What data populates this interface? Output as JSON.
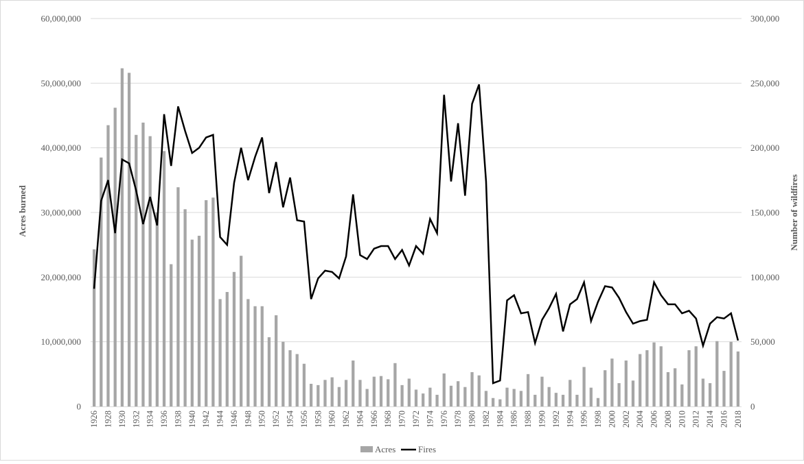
{
  "chart_data": {
    "type": "bar+line",
    "title": "",
    "xlabel": "",
    "ylabel_left": "Acres burned",
    "ylabel_right": "Number of wildfires",
    "ylim_left": [
      0,
      60000000
    ],
    "ylim_right": [
      0,
      300000
    ],
    "yticks_left": [
      "0",
      "10,000,000",
      "20,000,000",
      "30,000,000",
      "40,000,000",
      "50,000,000",
      "60,000,000"
    ],
    "yticks_right": [
      "0",
      "50,000",
      "100,000",
      "150,000",
      "200,000",
      "250,000",
      "300,000"
    ],
    "legend": {
      "position": "bottom",
      "items": [
        "Acres",
        "Fires"
      ]
    },
    "colors": {
      "acres": "#a6a6a6",
      "fires": "#000000",
      "grid": "#d9d9d9"
    },
    "grid": true,
    "years": [
      1926,
      1927,
      1928,
      1929,
      1930,
      1931,
      1932,
      1933,
      1934,
      1935,
      1936,
      1937,
      1938,
      1939,
      1940,
      1941,
      1942,
      1943,
      1944,
      1945,
      1946,
      1947,
      1948,
      1949,
      1950,
      1951,
      1952,
      1953,
      1954,
      1955,
      1956,
      1957,
      1958,
      1959,
      1960,
      1961,
      1962,
      1963,
      1964,
      1965,
      1966,
      1967,
      1968,
      1969,
      1970,
      1971,
      1972,
      1973,
      1974,
      1975,
      1976,
      1977,
      1978,
      1979,
      1980,
      1981,
      1982,
      1983,
      1984,
      1985,
      1986,
      1987,
      1988,
      1989,
      1990,
      1991,
      1992,
      1993,
      1994,
      1995,
      1996,
      1997,
      1998,
      1999,
      2000,
      2001,
      2002,
      2003,
      2004,
      2005,
      2006,
      2007,
      2008,
      2009,
      2010,
      2011,
      2012,
      2013,
      2014,
      2015,
      2016,
      2017,
      2018
    ],
    "series": [
      {
        "name": "Acres",
        "type": "bar",
        "axis": "left",
        "values": [
          24300000,
          38500000,
          43500000,
          46200000,
          52300000,
          51600000,
          42000000,
          43900000,
          41800000,
          30000000,
          39500000,
          22000000,
          33900000,
          30500000,
          25800000,
          26400000,
          31900000,
          32300000,
          16600000,
          17700000,
          20800000,
          23300000,
          16600000,
          15500000,
          15500000,
          10700000,
          14100000,
          10000000,
          8700000,
          8100000,
          6600000,
          3500000,
          3300000,
          4100000,
          4500000,
          3000000,
          4100000,
          7100000,
          4100000,
          2700000,
          4600000,
          4700000,
          4200000,
          6700000,
          3300000,
          4300000,
          2600000,
          2000000,
          2900000,
          1800000,
          5100000,
          3200000,
          3900000,
          3000000,
          5300000,
          4800000,
          2400000,
          1300000,
          1100000,
          2900000,
          2700000,
          2400000,
          5000000,
          1800000,
          4600000,
          3000000,
          2100000,
          1800000,
          4100000,
          1800000,
          6100000,
          2900000,
          1300000,
          5600000,
          7400000,
          3600000,
          7100000,
          4000000,
          8100000,
          8700000,
          9900000,
          9300000,
          5300000,
          5900000,
          3400000,
          8700000,
          9300000,
          4300000,
          3600000,
          10100000,
          5500000,
          10000000,
          8500000
        ]
      },
      {
        "name": "Fires",
        "type": "line",
        "axis": "right",
        "values": [
          91000,
          159000,
          175000,
          134000,
          191000,
          188000,
          167000,
          141000,
          162000,
          140000,
          226000,
          186000,
          232000,
          213000,
          196000,
          200000,
          208000,
          210000,
          131000,
          125000,
          173000,
          200000,
          175000,
          193000,
          208000,
          165000,
          189000,
          154000,
          177000,
          144000,
          143000,
          83000,
          99000,
          105000,
          104000,
          99000,
          116000,
          164000,
          117000,
          114000,
          122000,
          124000,
          124000,
          114000,
          121000,
          109000,
          124000,
          118000,
          145000,
          134000,
          241000,
          174000,
          219000,
          163000,
          234000,
          249000,
          174000,
          18000,
          20000,
          82000,
          86000,
          72000,
          73000,
          49000,
          67000,
          76000,
          87000,
          58000,
          79000,
          83000,
          96000,
          66000,
          81000,
          93000,
          92000,
          84000,
          73000,
          64000,
          66000,
          67000,
          96000,
          86000,
          79000,
          79000,
          72000,
          74000,
          68000,
          47000,
          64000,
          69000,
          68000,
          72000,
          51000
        ]
      }
    ]
  }
}
